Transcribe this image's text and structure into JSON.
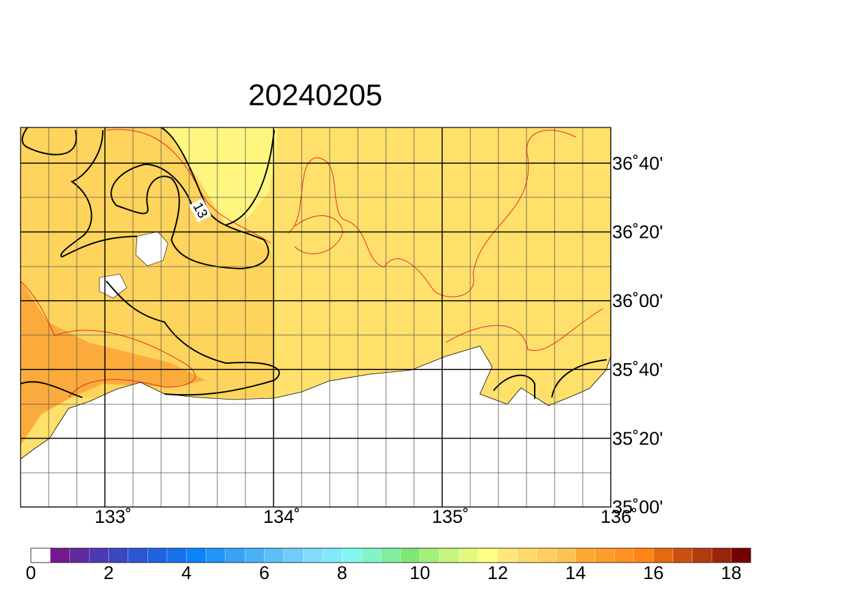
{
  "chart_data": {
    "type": "map",
    "title": "20240205",
    "xlim": [
      132.5,
      136
    ],
    "ylim": [
      35,
      36.84
    ],
    "xticks": [
      {
        "value": 133,
        "label": "133˚"
      },
      {
        "value": 134,
        "label": "134˚"
      },
      {
        "value": 135,
        "label": "135˚"
      },
      {
        "value": 136,
        "label": "136˚"
      }
    ],
    "yticks": [
      {
        "value": 35,
        "label": "35˚00'"
      },
      {
        "value": 35.3333,
        "label": "35˚20'"
      },
      {
        "value": 35.6667,
        "label": "35˚40'"
      },
      {
        "value": 36,
        "label": "36˚00'"
      },
      {
        "value": 36.3333,
        "label": "36˚20'"
      },
      {
        "value": 36.6667,
        "label": "36˚40'"
      }
    ],
    "contour_labels": [
      13
    ],
    "colorbar": {
      "bounds": [
        0,
        0.5,
        1,
        1.5,
        2,
        2.5,
        3,
        3.5,
        4,
        4.5,
        5,
        5.5,
        6,
        6.5,
        7,
        7.5,
        8,
        8.5,
        9,
        9.5,
        10,
        10.5,
        11,
        11.5,
        12,
        12.5,
        13,
        13.5,
        14,
        14.5,
        15,
        15.5,
        16,
        16.5,
        17,
        17.5,
        18,
        18.5
      ],
      "colors": [
        "#ffffff",
        "#751a8e",
        "#5f2aa0",
        "#4a3ab3",
        "#3a47c3",
        "#2c55d2",
        "#1f63e0",
        "#1672ec",
        "#0a84f6",
        "#2293f7",
        "#36a2f8",
        "#4ab1f9",
        "#5dbff9",
        "#6fcdfa",
        "#7fdcfb",
        "#7feafa",
        "#7ff8f0",
        "#7ff5c8",
        "#7fef9e",
        "#7fe878",
        "#a3f07a",
        "#c6f47c",
        "#e4f87e",
        "#ffff80",
        "#ffe77a",
        "#ffda6a",
        "#ffcf5e",
        "#ffc252",
        "#ffa833",
        "#ff9c2a",
        "#ff9021",
        "#ff8415",
        "#e46a10",
        "#cc5010",
        "#b33c0c",
        "#992408",
        "#760000"
      ],
      "ticks": [
        0,
        2,
        4,
        6,
        8,
        10,
        12,
        14,
        16,
        18
      ]
    }
  }
}
